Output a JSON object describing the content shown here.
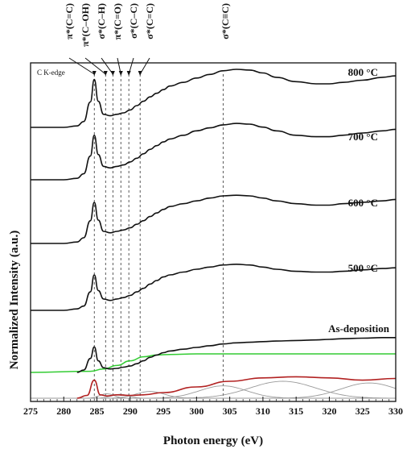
{
  "chart_data": {
    "type": "line",
    "xlabel": "Photon energy (eV)",
    "ylabel": "Normalized Intensity (a.u.)",
    "xlim": [
      275,
      330
    ],
    "xticks": [
      275,
      280,
      285,
      290,
      295,
      300,
      305,
      310,
      315,
      320,
      325,
      330
    ],
    "edge_label": "C K-edge",
    "peak_markers": [
      {
        "label": "π*(C=C)",
        "energy": 284.6
      },
      {
        "label": "π*(C–OH)",
        "energy": 286.3
      },
      {
        "label": "σ*(C–H)",
        "energy": 287.4
      },
      {
        "label": "π*(C=O)",
        "energy": 288.6
      },
      {
        "label": "σ*(C–C)",
        "energy": 289.8
      },
      {
        "label": "σ*(C=C)",
        "energy": 291.5
      },
      {
        "label": "σ*(C≡C)",
        "energy": 304.0
      }
    ],
    "series": [
      {
        "name": "800 °C",
        "x": [
          275,
          280,
          282,
          283,
          284,
          284.6,
          285.2,
          286,
          287,
          288,
          289,
          290,
          291,
          292,
          293,
          294,
          295,
          296,
          298,
          300,
          302,
          304,
          306,
          308,
          310,
          312,
          315,
          318,
          320,
          322,
          325,
          328,
          330
        ],
        "y": [
          0.0,
          0.0,
          0.02,
          0.08,
          0.35,
          0.66,
          0.36,
          0.18,
          0.16,
          0.18,
          0.2,
          0.24,
          0.3,
          0.36,
          0.42,
          0.47,
          0.52,
          0.57,
          0.62,
          0.68,
          0.73,
          0.78,
          0.8,
          0.79,
          0.75,
          0.69,
          0.63,
          0.6,
          0.6,
          0.62,
          0.65,
          0.69,
          0.71
        ]
      },
      {
        "name": "700 °C",
        "x": [
          275,
          280,
          282,
          283,
          284,
          284.6,
          285.2,
          286,
          287,
          288,
          289,
          290,
          291,
          292,
          293,
          294,
          295,
          296,
          298,
          300,
          302,
          304,
          306,
          308,
          310,
          312,
          315,
          318,
          320,
          322,
          325,
          328,
          330
        ],
        "y": [
          0.0,
          0.0,
          0.02,
          0.08,
          0.32,
          0.6,
          0.34,
          0.18,
          0.16,
          0.18,
          0.2,
          0.24,
          0.29,
          0.35,
          0.41,
          0.46,
          0.51,
          0.55,
          0.6,
          0.66,
          0.7,
          0.74,
          0.76,
          0.75,
          0.71,
          0.66,
          0.6,
          0.58,
          0.58,
          0.6,
          0.63,
          0.66,
          0.68
        ]
      },
      {
        "name": "600 °C",
        "x": [
          275,
          280,
          282,
          283,
          284,
          284.6,
          285.2,
          286,
          287,
          288,
          289,
          290,
          291,
          292,
          293,
          294,
          295,
          296,
          298,
          300,
          302,
          304,
          306,
          308,
          310,
          312,
          315,
          318,
          320,
          322,
          325,
          328,
          330
        ],
        "y": [
          0.0,
          0.0,
          0.02,
          0.08,
          0.32,
          0.58,
          0.33,
          0.17,
          0.15,
          0.17,
          0.19,
          0.22,
          0.27,
          0.32,
          0.38,
          0.43,
          0.48,
          0.52,
          0.56,
          0.6,
          0.64,
          0.67,
          0.68,
          0.67,
          0.64,
          0.6,
          0.56,
          0.54,
          0.54,
          0.56,
          0.58,
          0.6,
          0.62
        ]
      },
      {
        "name": "500 °C",
        "x": [
          275,
          280,
          282,
          283,
          284,
          284.6,
          285.2,
          286,
          287,
          288,
          289,
          290,
          291,
          292,
          293,
          294,
          295,
          296,
          298,
          300,
          302,
          304,
          306,
          308,
          310,
          312,
          315,
          318,
          320,
          322,
          325,
          328,
          330
        ],
        "y": [
          0.0,
          0.0,
          0.02,
          0.06,
          0.26,
          0.5,
          0.28,
          0.16,
          0.14,
          0.16,
          0.18,
          0.21,
          0.26,
          0.31,
          0.37,
          0.42,
          0.47,
          0.5,
          0.54,
          0.58,
          0.61,
          0.64,
          0.65,
          0.64,
          0.61,
          0.58,
          0.55,
          0.54,
          0.54,
          0.55,
          0.57,
          0.59,
          0.6
        ]
      },
      {
        "name": "As-deposition",
        "x": [
          282,
          283,
          284,
          284.6,
          285.2,
          286,
          287,
          288,
          289,
          290,
          291,
          292,
          293,
          294,
          295,
          296,
          298,
          300,
          302,
          304,
          306,
          308,
          310,
          312,
          315,
          318,
          320,
          322,
          325,
          328,
          330
        ],
        "y": [
          0.0,
          0.04,
          0.24,
          0.44,
          0.2,
          0.08,
          0.06,
          0.07,
          0.09,
          0.11,
          0.15,
          0.2,
          0.26,
          0.3,
          0.34,
          0.37,
          0.4,
          0.43,
          0.46,
          0.49,
          0.51,
          0.52,
          0.53,
          0.54,
          0.55,
          0.56,
          0.57,
          0.58,
          0.59,
          0.6,
          0.6
        ]
      }
    ],
    "fit_components": {
      "step_edge_green": {
        "x": [
          275,
          284,
          286,
          288,
          290,
          292,
          294,
          296,
          300,
          310,
          330
        ],
        "y": [
          0.0,
          0.02,
          0.06,
          0.12,
          0.2,
          0.27,
          0.3,
          0.31,
          0.32,
          0.32,
          0.32
        ]
      },
      "envelope_red": {
        "x": [
          282,
          283.5,
          284.6,
          285.5,
          286.5,
          288,
          290,
          292,
          295,
          300,
          305,
          310,
          315,
          320,
          325,
          330
        ],
        "y": [
          0.0,
          0.05,
          0.32,
          0.06,
          0.04,
          0.06,
          0.05,
          0.06,
          0.1,
          0.2,
          0.3,
          0.36,
          0.38,
          0.36,
          0.32,
          0.35
        ]
      },
      "gray_components": [
        {
          "center": 286.5,
          "amp": 0.08,
          "width": 1.5
        },
        {
          "center": 288.5,
          "amp": 0.07,
          "width": 1.8
        },
        {
          "center": 293.0,
          "amp": 0.12,
          "width": 3.0
        },
        {
          "center": 304.0,
          "amp": 0.22,
          "width": 5.0
        },
        {
          "center": 313.0,
          "amp": 0.3,
          "width": 7.0
        },
        {
          "center": 326.0,
          "amp": 0.27,
          "width": 6.0
        }
      ]
    }
  }
}
